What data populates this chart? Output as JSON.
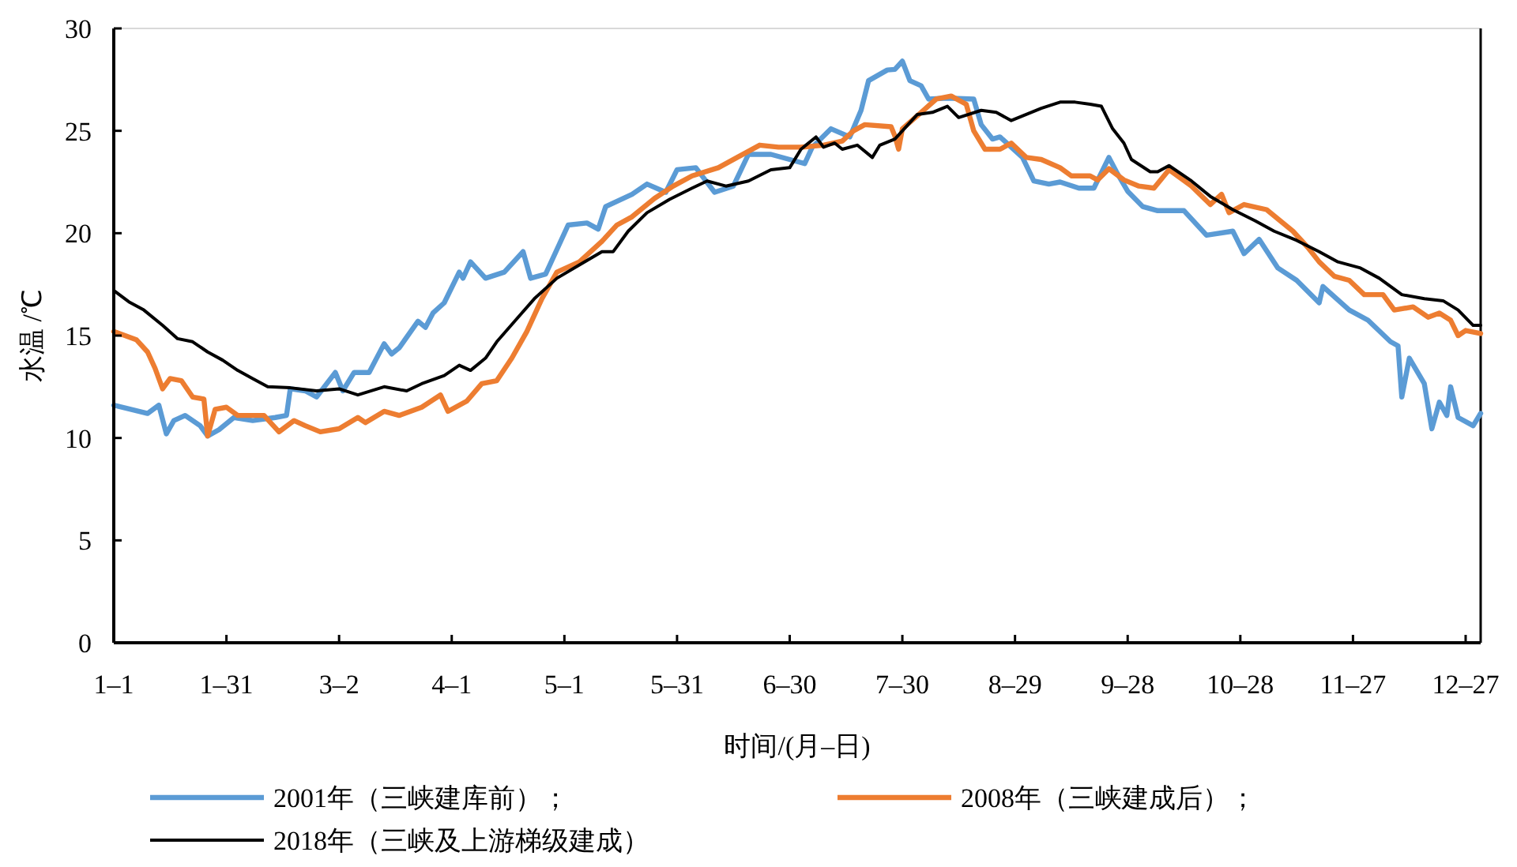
{
  "chart_data": {
    "type": "line",
    "xlabel": "时间/(月–日)",
    "ylabel": "水温 /℃",
    "xlim": [
      "--01-01",
      "--12-31"
    ],
    "ylim": [
      0,
      30
    ],
    "xticks": [
      {
        "value": "--01-01",
        "label": "1–1"
      },
      {
        "value": "--01-31",
        "label": "1–31"
      },
      {
        "value": "--03-02",
        "label": "3–2"
      },
      {
        "value": "--04-01",
        "label": "4–1"
      },
      {
        "value": "--05-01",
        "label": "5–1"
      },
      {
        "value": "--05-31",
        "label": "5–31"
      },
      {
        "value": "--06-30",
        "label": "6–30"
      },
      {
        "value": "--07-30",
        "label": "7–30"
      },
      {
        "value": "--08-29",
        "label": "8–29"
      },
      {
        "value": "--09-28",
        "label": "9–28"
      },
      {
        "value": "--10-28",
        "label": "10–28"
      },
      {
        "value": "--11-27",
        "label": "11–27"
      },
      {
        "value": "--12-27",
        "label": "12–27"
      }
    ],
    "yticks": [
      0,
      5,
      10,
      15,
      20,
      25,
      30
    ],
    "grid": false,
    "legend": "bottom",
    "series": [
      {
        "name": "2001年（三峡建库前）；",
        "color": "#5b9bd5",
        "x": [
          "--01-01",
          "--01-10",
          "--01-13",
          "--01-15",
          "--01-17",
          "--01-20",
          "--01-24",
          "--01-26",
          "--01-29",
          "--02-02",
          "--02-07",
          "--02-13",
          "--02-16",
          "--02-17",
          "--02-21",
          "--02-24",
          "--03-01",
          "--03-03",
          "--03-06",
          "--03-10",
          "--03-14",
          "--03-16",
          "--03-18",
          "--03-23",
          "--03-25",
          "--03-27",
          "--03-30",
          "--04-03",
          "--04-04",
          "--04-06",
          "--04-10",
          "--04-15",
          "--04-20",
          "--04-22",
          "--04-26",
          "--05-02",
          "--05-07",
          "--05-10",
          "--05-12",
          "--05-19",
          "--05-23",
          "--05-28",
          "--05-31",
          "--06-05",
          "--06-10",
          "--06-15",
          "--06-19",
          "--06-25",
          "--06-30",
          "--07-04",
          "--07-06",
          "--07-11",
          "--07-16",
          "--07-19",
          "--07-21",
          "--07-26",
          "--07-28",
          "--07-30",
          "--08-01",
          "--08-04",
          "--08-06",
          "--08-11",
          "--08-18",
          "--08-20",
          "--08-23",
          "--08-25",
          "--08-31",
          "--09-03",
          "--09-07",
          "--09-10",
          "--09-15",
          "--09-19",
          "--09-23",
          "--09-25",
          "--09-28",
          "--10-02",
          "--10-06",
          "--10-13",
          "--10-19",
          "--10-26",
          "--10-29",
          "--11-02",
          "--11-07",
          "--11-12",
          "--11-18",
          "--11-19",
          "--11-26",
          "--12-01",
          "--12-07",
          "--12-09",
          "--12-10",
          "--12-12",
          "--12-16",
          "--12-18",
          "--12-20",
          "--12-22",
          "--12-23",
          "--12-25",
          "--12-29",
          "--12-31"
        ],
        "values": [
          11.6,
          11.2,
          11.6,
          10.2,
          10.85,
          11.1,
          10.6,
          10.1,
          10.4,
          11.0,
          10.85,
          11.0,
          11.1,
          12.4,
          12.3,
          12.0,
          13.2,
          12.3,
          13.2,
          13.2,
          14.6,
          14.1,
          14.4,
          15.7,
          15.4,
          16.1,
          16.6,
          18.1,
          17.8,
          18.6,
          17.8,
          18.1,
          19.1,
          17.8,
          18.0,
          20.4,
          20.5,
          20.2,
          21.3,
          21.9,
          22.4,
          22.0,
          23.1,
          23.2,
          22.0,
          22.3,
          23.85,
          23.85,
          23.6,
          23.4,
          24.2,
          25.1,
          24.7,
          26.0,
          27.45,
          27.97,
          28.0,
          28.4,
          27.45,
          27.2,
          26.55,
          26.6,
          26.55,
          25.3,
          24.6,
          24.7,
          23.7,
          22.55,
          22.4,
          22.5,
          22.2,
          22.2,
          23.7,
          23.0,
          22.05,
          21.3,
          21.1,
          21.1,
          19.9,
          20.1,
          19.0,
          19.7,
          18.3,
          17.7,
          16.6,
          17.4,
          16.25,
          15.75,
          14.7,
          14.5,
          12.0,
          13.9,
          12.65,
          10.45,
          11.75,
          11.1,
          12.5,
          11.0,
          10.6,
          11.2
        ]
      },
      {
        "name": "2008年（三峡建成后）；",
        "color": "#ed7d31",
        "x": [
          "--01-01",
          "--01-07",
          "--01-10",
          "--01-12",
          "--01-14",
          "--01-16",
          "--01-19",
          "--01-22",
          "--01-25",
          "--01-26",
          "--01-28",
          "--01-31",
          "--02-03",
          "--02-07",
          "--02-10",
          "--02-14",
          "--02-18",
          "--02-21",
          "--02-25",
          "--03-02",
          "--03-07",
          "--03-09",
          "--03-14",
          "--03-18",
          "--03-24",
          "--03-29",
          "--03-31",
          "--04-05",
          "--04-09",
          "--04-13",
          "--04-17",
          "--04-21",
          "--04-25",
          "--04-29",
          "--05-05",
          "--05-11",
          "--05-15",
          "--05-19",
          "--05-25",
          "--05-30",
          "--06-04",
          "--06-11",
          "--06-16",
          "--06-22",
          "--06-27",
          "--07-03",
          "--07-09",
          "--07-14",
          "--07-17",
          "--07-20",
          "--07-27",
          "--07-28",
          "--07-29",
          "--07-30",
          "--08-04",
          "--08-08",
          "--08-12",
          "--08-16",
          "--08-18",
          "--08-21",
          "--08-25",
          "--08-28",
          "--09-01",
          "--09-05",
          "--09-10",
          "--09-13",
          "--09-18",
          "--09-20",
          "--09-23",
          "--09-27",
          "--10-01",
          "--10-05",
          "--10-09",
          "--10-15",
          "--10-20",
          "--10-23",
          "--10-25",
          "--10-29",
          "--11-04",
          "--11-11",
          "--11-15",
          "--11-18",
          "--11-22",
          "--11-26",
          "--11-30",
          "--12-05",
          "--12-08",
          "--12-13",
          "--12-17",
          "--12-20",
          "--12-23",
          "--12-25",
          "--12-27",
          "--12-31"
        ],
        "values": [
          15.2,
          14.8,
          14.2,
          13.4,
          12.4,
          12.9,
          12.8,
          12.0,
          11.9,
          10.1,
          11.4,
          11.5,
          11.1,
          11.1,
          11.1,
          10.3,
          10.85,
          10.6,
          10.3,
          10.45,
          11.0,
          10.75,
          11.3,
          11.1,
          11.5,
          12.1,
          11.3,
          11.8,
          12.65,
          12.8,
          13.9,
          15.2,
          16.8,
          18.1,
          18.6,
          19.6,
          20.4,
          20.8,
          21.7,
          22.3,
          22.8,
          23.2,
          23.7,
          24.3,
          24.2,
          24.2,
          24.3,
          24.5,
          25.0,
          25.3,
          25.2,
          24.75,
          24.1,
          25.1,
          25.9,
          26.55,
          26.7,
          26.3,
          25.0,
          24.1,
          24.1,
          24.4,
          23.7,
          23.6,
          23.2,
          22.8,
          22.8,
          22.6,
          23.15,
          22.6,
          22.3,
          22.2,
          23.1,
          22.3,
          21.4,
          21.9,
          21.0,
          21.4,
          21.15,
          20.1,
          19.3,
          18.6,
          17.9,
          17.7,
          17.0,
          17.0,
          16.25,
          16.4,
          15.9,
          16.1,
          15.75,
          15.0,
          15.25,
          15.1
        ]
      },
      {
        "name": "2018年（三峡及上游梯级建成）",
        "color": "#000000",
        "x": [
          "--01-01",
          "--01-05",
          "--01-09",
          "--01-14",
          "--01-18",
          "--01-22",
          "--01-26",
          "--01-30",
          "--02-03",
          "--02-07",
          "--02-11",
          "--02-17",
          "--02-24",
          "--03-02",
          "--03-07",
          "--03-14",
          "--03-20",
          "--03-24",
          "--03-30",
          "--04-03",
          "--04-06",
          "--04-10",
          "--04-13",
          "--04-18",
          "--04-23",
          "--04-29",
          "--05-05",
          "--05-11",
          "--05-14",
          "--05-18",
          "--05-23",
          "--05-29",
          "--06-04",
          "--06-08",
          "--06-13",
          "--06-19",
          "--06-25",
          "--06-30",
          "--07-03",
          "--07-07",
          "--07-09",
          "--07-12",
          "--07-14",
          "--07-18",
          "--07-22",
          "--07-24",
          "--07-28",
          "--08-03",
          "--08-07",
          "--08-11",
          "--08-14",
          "--08-20",
          "--08-24",
          "--08-28",
          "--09-01",
          "--09-05",
          "--09-10",
          "--09-14",
          "--09-18",
          "--09-21",
          "--09-24",
          "--09-27",
          "--09-29",
          "--10-04",
          "--10-06",
          "--10-09",
          "--10-15",
          "--10-20",
          "--10-26",
          "--11-01",
          "--11-06",
          "--11-12",
          "--11-18",
          "--11-23",
          "--11-29",
          "--12-04",
          "--12-10",
          "--12-16",
          "--12-21",
          "--12-25",
          "--12-29",
          "--12-31"
        ],
        "values": [
          17.2,
          16.65,
          16.25,
          15.5,
          14.85,
          14.7,
          14.2,
          13.8,
          13.3,
          12.9,
          12.5,
          12.45,
          12.3,
          12.4,
          12.1,
          12.5,
          12.3,
          12.65,
          13.05,
          13.55,
          13.3,
          13.9,
          14.7,
          15.75,
          16.8,
          17.8,
          18.45,
          19.1,
          19.1,
          20.1,
          21.0,
          21.65,
          22.2,
          22.55,
          22.3,
          22.55,
          23.1,
          23.2,
          24.1,
          24.7,
          24.2,
          24.4,
          24.1,
          24.3,
          23.7,
          24.3,
          24.6,
          25.8,
          25.9,
          26.2,
          25.65,
          26.0,
          25.9,
          25.5,
          25.8,
          26.1,
          26.4,
          26.4,
          26.3,
          26.2,
          25.1,
          24.4,
          23.6,
          23.0,
          23.0,
          23.3,
          22.55,
          21.8,
          21.15,
          20.6,
          20.1,
          19.65,
          19.1,
          18.6,
          18.3,
          17.8,
          17.0,
          16.8,
          16.7,
          16.25,
          15.5,
          15.5
        ]
      }
    ]
  }
}
